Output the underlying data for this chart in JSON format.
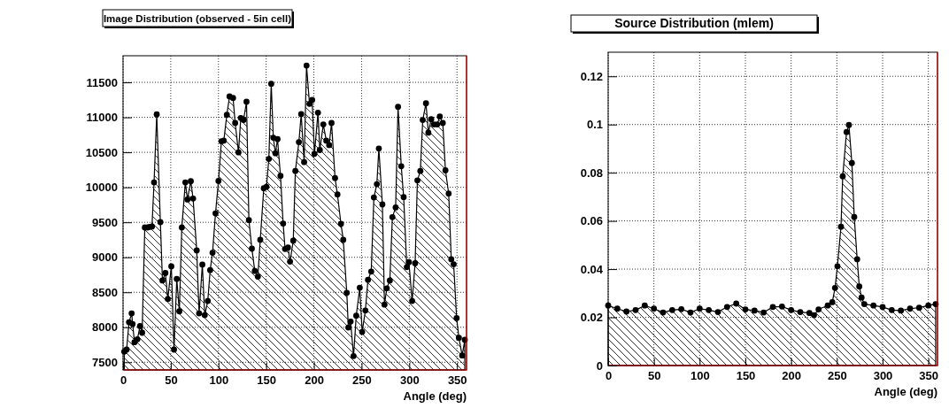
{
  "chart_data": [
    {
      "type": "area",
      "title": "Image Distribution (observed - 5in cell)",
      "xlabel": "Angle (deg)",
      "marker": "circle",
      "grid": true,
      "color": "#000000",
      "xlim": [
        0,
        360
      ],
      "xticks": [
        0,
        50,
        100,
        150,
        200,
        250,
        300,
        350
      ],
      "ylim": [
        7390,
        11880
      ],
      "yticks": [
        7500,
        8000,
        8500,
        9000,
        9500,
        10000,
        10500,
        11000,
        11500
      ],
      "x": [
        1.25,
        3.75,
        6.25,
        9,
        10,
        12,
        15,
        17.8,
        20,
        22.8,
        25.6,
        28,
        30.3,
        32.5,
        35.3,
        39.1,
        41.3,
        44.4,
        46.9,
        50.6,
        53.4,
        56.3,
        59,
        61.6,
        65.3,
        67.5,
        71,
        73.4,
        77.2,
        79.7,
        83.1,
        85.6,
        88.8,
        91.3,
        93.8,
        96.9,
        100,
        103.1,
        105.6,
        108.8,
        111.6,
        115.3,
        117.5,
        121,
        123.4,
        126.3,
        129.4,
        131.9,
        135,
        138.1,
        141.3,
        143.8,
        147.5,
        150.3,
        152.8,
        155.3,
        157.5,
        159.7,
        161.9,
        165,
        167.8,
        169.8,
        172.9,
        175,
        178.4,
        180.6,
        184.3,
        186.7,
        189.8,
        192.3,
        195.4,
        198.2,
        200.6,
        204.3,
        206.2,
        209.9,
        213,
        216,
        218.5,
        222.2,
        224.7,
        228.4,
        230.8,
        234.5,
        236.1,
        238.5,
        241.6,
        244.4,
        248.1,
        250.6,
        254,
        256.7,
        260.1,
        262.9,
        266,
        268.1,
        271.8,
        274,
        276.4,
        279.6,
        282.3,
        285.7,
        288.2,
        291.6,
        294.1,
        297.4,
        299.6,
        303,
        306.1,
        308.5,
        311.6,
        314.1,
        317.5,
        320,
        323,
        325.8,
        329.2,
        332,
        335.1,
        337.9,
        341.3,
        344,
        346.5,
        349.6,
        352,
        355.4,
        358.2
      ],
      "values": [
        7652,
        7681,
        8072,
        8198,
        8047,
        7786,
        7828,
        8017,
        7921,
        9426,
        9426,
        9435,
        9440,
        10070,
        11042,
        9502,
        8669,
        8775,
        8404,
        8871,
        7681,
        8690,
        8228,
        9426,
        10070,
        9826,
        10087,
        9839,
        9098,
        8198,
        8896,
        8173,
        8375,
        8817,
        9065,
        9628,
        10091,
        10659,
        10667,
        11037,
        11298,
        11277,
        10920,
        10499,
        10991,
        10962,
        11222,
        9532,
        9124,
        8804,
        8724,
        9250,
        9986,
        10007,
        10406,
        11479,
        10709,
        10486,
        10688,
        10163,
        9481,
        9119,
        9140,
        8939,
        9237,
        10234,
        10646,
        11046,
        10360,
        11740,
        11193,
        11248,
        10478,
        11067,
        10533,
        10899,
        10667,
        10604,
        10920,
        10133,
        9898,
        9477,
        9250,
        8493,
        7996,
        8081,
        7588,
        8165,
        8565,
        7933,
        8240,
        8678,
        8796,
        9856,
        10045,
        10554,
        9755,
        8324,
        8556,
        8669,
        9574,
        9712,
        11151,
        10301,
        9860,
        8859,
        8930,
        8375,
        8914,
        10099,
        10234,
        10962,
        11201,
        10781,
        10974,
        10899,
        10899,
        11012,
        10920,
        10242,
        9910,
        8972,
        8901,
        8131,
        7849,
        7597,
        7820
      ]
    },
    {
      "type": "area",
      "title": "Source Distribution (mlem)",
      "xlabel": "Angle (deg)",
      "marker": "circle",
      "grid": true,
      "color": "#000000",
      "xlim": [
        0,
        360
      ],
      "xticks": [
        0,
        50,
        100,
        150,
        200,
        250,
        300,
        350
      ],
      "ylim": [
        0,
        0.13
      ],
      "yticks": [
        0,
        0.02,
        0.04,
        0.06,
        0.08,
        0.1,
        0.12
      ],
      "x": [
        0,
        10,
        20,
        30,
        40,
        50,
        60,
        70,
        80,
        90,
        100,
        110,
        120,
        130,
        140,
        150,
        160,
        170,
        180,
        190,
        200,
        210,
        220,
        225,
        230,
        240,
        245,
        248,
        250.6,
        254.5,
        256.4,
        260.6,
        263.2,
        266.4,
        269,
        272.2,
        274.5,
        277,
        280,
        290,
        300,
        310,
        320,
        330,
        340,
        350,
        358
      ],
      "values": [
        0.0249,
        0.0236,
        0.0224,
        0.023,
        0.0249,
        0.0236,
        0.022,
        0.023,
        0.0234,
        0.022,
        0.0236,
        0.023,
        0.0222,
        0.0243,
        0.0257,
        0.0233,
        0.0228,
        0.022,
        0.0243,
        0.0245,
        0.023,
        0.0222,
        0.0218,
        0.0209,
        0.0233,
        0.0249,
        0.0263,
        0.0322,
        0.0412,
        0.0576,
        0.0785,
        0.0969,
        0.0998,
        0.084,
        0.0616,
        0.0441,
        0.0328,
        0.0282,
        0.0255,
        0.0249,
        0.0243,
        0.023,
        0.0228,
        0.0236,
        0.024,
        0.0249,
        0.0255
      ]
    }
  ]
}
